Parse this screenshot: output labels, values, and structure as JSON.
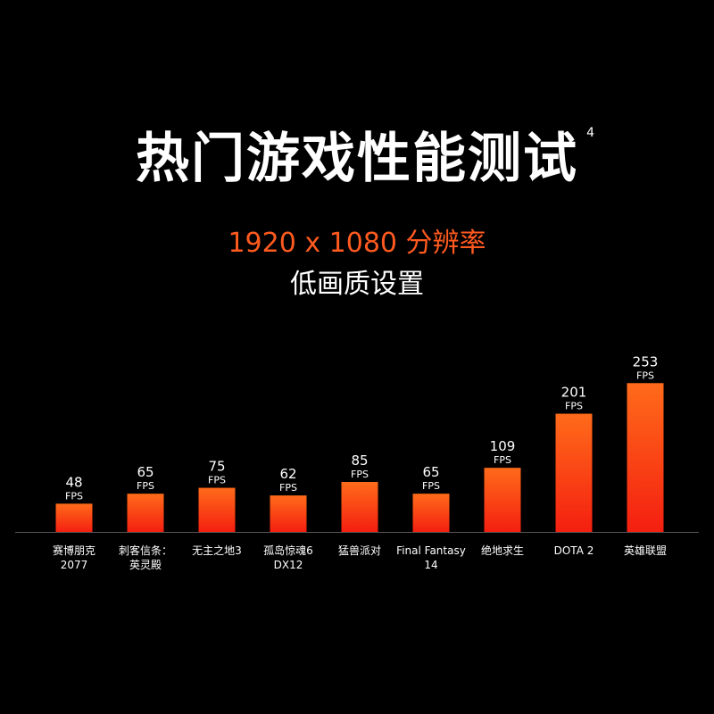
{
  "header": {
    "title": "热门游戏性能测试",
    "title_footnote": "4",
    "subtitle": "1920 x 1080 分辨率",
    "subtitle2": "低画质设置"
  },
  "colors": {
    "background": "#000000",
    "accent": "#ff5a1f",
    "bar_top": "#ff6b1a",
    "bar_bottom": "#f41f10",
    "text": "#ffffff",
    "baseline": "#555555"
  },
  "chart_data": {
    "type": "bar",
    "title": "热门游戏性能测试",
    "unit": "FPS",
    "categories": [
      [
        "赛博朋克",
        "2077"
      ],
      [
        "刺客信条：",
        "英灵殿"
      ],
      [
        "无主之地3"
      ],
      [
        "孤岛惊魂6",
        "DX12"
      ],
      [
        "猛兽派对"
      ],
      [
        "Final Fantasy",
        "14"
      ],
      [
        "绝地求生"
      ],
      [
        "DOTA 2"
      ],
      [
        "英雄联盟"
      ]
    ],
    "values": [
      48,
      65,
      75,
      62,
      85,
      65,
      109,
      201,
      253
    ],
    "grid": false,
    "legend": "none"
  }
}
